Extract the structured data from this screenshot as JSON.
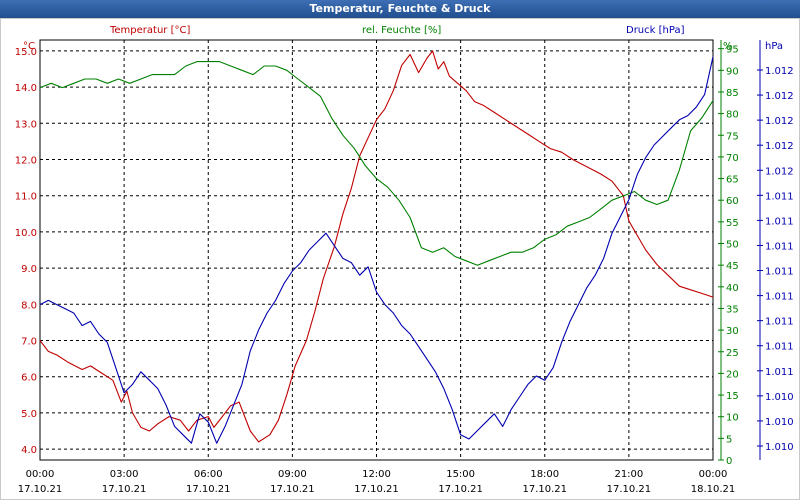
{
  "window": {
    "title": "Temperatur, Feuchte & Druck"
  },
  "colors": {
    "temperature": "#c00000",
    "humidity": "#008000",
    "pressure": "#0000b0",
    "grid": "#000000",
    "axis_text": "#000000"
  },
  "chart_data": {
    "type": "line",
    "grid": true,
    "x_ticks": [
      {
        "time": "00:00",
        "date": "17.10.21"
      },
      {
        "time": "03:00",
        "date": "17.10.21"
      },
      {
        "time": "06:00",
        "date": "17.10.21"
      },
      {
        "time": "09:00",
        "date": "17.10.21"
      },
      {
        "time": "12:00",
        "date": "17.10.21"
      },
      {
        "time": "15:00",
        "date": "17.10.21"
      },
      {
        "time": "18:00",
        "date": "17.10.21"
      },
      {
        "time": "21:00",
        "date": "17.10.21"
      },
      {
        "time": "00:00",
        "date": "18.10.21"
      }
    ],
    "x_range_hours": [
      0,
      24
    ],
    "axes": {
      "temperature": {
        "label": "Temperatur [°C]",
        "unit": "°C",
        "range": [
          3.7,
          15.3
        ],
        "ticks": [
          "4.0",
          "5.0",
          "6.0",
          "7.0",
          "8.0",
          "9.0",
          "10.0",
          "11.0",
          "12.0",
          "13.0",
          "14.0",
          "15.0"
        ]
      },
      "humidity": {
        "label": "rel. Feuchte [%]",
        "unit": "%",
        "range": [
          0,
          97
        ],
        "ticks": [
          "0",
          "5",
          "10",
          "15",
          "20",
          "25",
          "30",
          "35",
          "40",
          "45",
          "50",
          "55",
          "60",
          "65",
          "70",
          "75",
          "80",
          "85",
          "90",
          "95"
        ]
      },
      "pressure": {
        "label": "Druck [hPa]",
        "unit": "hPa",
        "ticks": [
          "1.010",
          "1.010",
          "1.010",
          "1.011",
          "1.011",
          "1.011",
          "1.011",
          "1.011",
          "1.011",
          "1.011",
          "1.011",
          "1.012",
          "1.012",
          "1.012",
          "1.012",
          "1.012"
        ]
      }
    },
    "series": [
      {
        "name": "Temperatur [°C]",
        "axis": "temperature",
        "x": [
          0,
          0.3,
          0.6,
          1.0,
          1.5,
          1.8,
          2.2,
          2.6,
          2.9,
          3.1,
          3.3,
          3.6,
          3.9,
          4.2,
          4.6,
          5.0,
          5.3,
          5.6,
          6.0,
          6.2,
          6.5,
          6.8,
          7.1,
          7.5,
          7.8,
          8.2,
          8.5,
          8.8,
          9.1,
          9.5,
          9.8,
          10.1,
          10.5,
          10.8,
          11.1,
          11.4,
          11.7,
          12.0,
          12.3,
          12.6,
          12.9,
          13.2,
          13.5,
          13.8,
          14.0,
          14.2,
          14.4,
          14.6,
          14.9,
          15.2,
          15.5,
          15.8,
          16.2,
          16.6,
          17.0,
          17.4,
          17.8,
          18.2,
          18.6,
          19.0,
          19.5,
          20.0,
          20.4,
          20.8,
          21.0,
          21.3,
          21.6,
          22.0,
          22.4,
          22.8,
          23.2,
          23.6,
          24.0
        ],
        "values": [
          7.0,
          6.7,
          6.6,
          6.4,
          6.2,
          6.3,
          6.1,
          5.9,
          5.3,
          5.6,
          5.0,
          4.6,
          4.5,
          4.7,
          4.9,
          4.8,
          4.5,
          4.8,
          4.9,
          4.6,
          4.9,
          5.2,
          5.3,
          4.5,
          4.2,
          4.4,
          4.8,
          5.5,
          6.3,
          7.0,
          7.8,
          8.7,
          9.6,
          10.5,
          11.2,
          12.1,
          12.6,
          13.1,
          13.4,
          13.9,
          14.6,
          14.9,
          14.4,
          14.8,
          15.0,
          14.5,
          14.7,
          14.3,
          14.1,
          13.9,
          13.6,
          13.5,
          13.3,
          13.1,
          12.9,
          12.7,
          12.5,
          12.3,
          12.2,
          12.0,
          11.8,
          11.6,
          11.4,
          11.0,
          10.3,
          9.9,
          9.5,
          9.1,
          8.8,
          8.5,
          8.4,
          8.3,
          8.2
        ]
      },
      {
        "name": "rel. Feuchte [%]",
        "axis": "humidity",
        "x": [
          0,
          0.4,
          0.8,
          1.2,
          1.6,
          2.0,
          2.4,
          2.8,
          3.2,
          3.6,
          4.0,
          4.4,
          4.8,
          5.2,
          5.6,
          6.0,
          6.4,
          6.8,
          7.2,
          7.6,
          8.0,
          8.4,
          8.8,
          9.2,
          9.6,
          10.0,
          10.4,
          10.8,
          11.2,
          11.6,
          12.0,
          12.4,
          12.8,
          13.2,
          13.6,
          14.0,
          14.4,
          14.8,
          15.2,
          15.6,
          16.0,
          16.4,
          16.8,
          17.2,
          17.6,
          18.0,
          18.4,
          18.8,
          19.2,
          19.6,
          20.0,
          20.4,
          20.8,
          21.2,
          21.6,
          22.0,
          22.4,
          22.8,
          23.2,
          23.6,
          24.0
        ],
        "values": [
          86,
          87,
          86,
          87,
          88,
          88,
          87,
          88,
          87,
          88,
          89,
          89,
          89,
          91,
          92,
          92,
          92,
          91,
          90,
          89,
          91,
          91,
          90,
          88,
          86,
          84,
          79,
          75,
          72,
          68,
          65,
          63,
          60,
          56,
          49,
          48,
          49,
          47,
          46,
          45,
          46,
          47,
          48,
          48,
          49,
          51,
          52,
          54,
          55,
          56,
          58,
          60,
          61,
          62,
          60,
          59,
          60,
          67,
          76,
          79,
          83
        ]
      },
      {
        "name": "Druck [hPa]",
        "axis": "pressure",
        "x": [
          0,
          0.3,
          0.6,
          0.9,
          1.2,
          1.5,
          1.8,
          2.1,
          2.4,
          2.7,
          3.0,
          3.3,
          3.6,
          3.9,
          4.2,
          4.5,
          4.8,
          5.1,
          5.4,
          5.7,
          6.0,
          6.3,
          6.6,
          6.9,
          7.2,
          7.5,
          7.8,
          8.1,
          8.4,
          8.7,
          9.0,
          9.3,
          9.6,
          9.9,
          10.2,
          10.5,
          10.8,
          11.1,
          11.4,
          11.7,
          12.0,
          12.3,
          12.6,
          12.9,
          13.2,
          13.5,
          13.8,
          14.1,
          14.4,
          14.7,
          15.0,
          15.3,
          15.6,
          15.9,
          16.2,
          16.5,
          16.8,
          17.1,
          17.4,
          17.7,
          18.0,
          18.3,
          18.6,
          18.9,
          19.2,
          19.5,
          19.8,
          20.1,
          20.4,
          20.7,
          21.0,
          21.3,
          21.6,
          21.9,
          22.2,
          22.5,
          22.8,
          23.1,
          23.4,
          23.7,
          24.0
        ],
        "values": [
          37,
          38,
          37,
          36,
          35,
          32,
          33,
          30,
          28,
          22,
          16,
          18,
          21,
          19,
          17,
          13,
          8,
          6,
          4,
          11,
          9,
          4,
          8,
          13,
          18,
          26,
          31,
          35,
          38,
          42,
          45,
          47,
          50,
          52,
          54,
          51,
          48,
          47,
          44,
          46,
          40,
          37,
          35,
          32,
          30,
          27,
          24,
          21,
          17,
          12,
          6,
          5,
          7,
          9,
          11,
          8,
          12,
          15,
          18,
          20,
          19,
          22,
          28,
          33,
          37,
          41,
          44,
          48,
          54,
          58,
          62,
          68,
          72,
          75,
          77,
          79,
          81,
          82,
          84,
          87,
          96
        ]
      }
    ]
  }
}
